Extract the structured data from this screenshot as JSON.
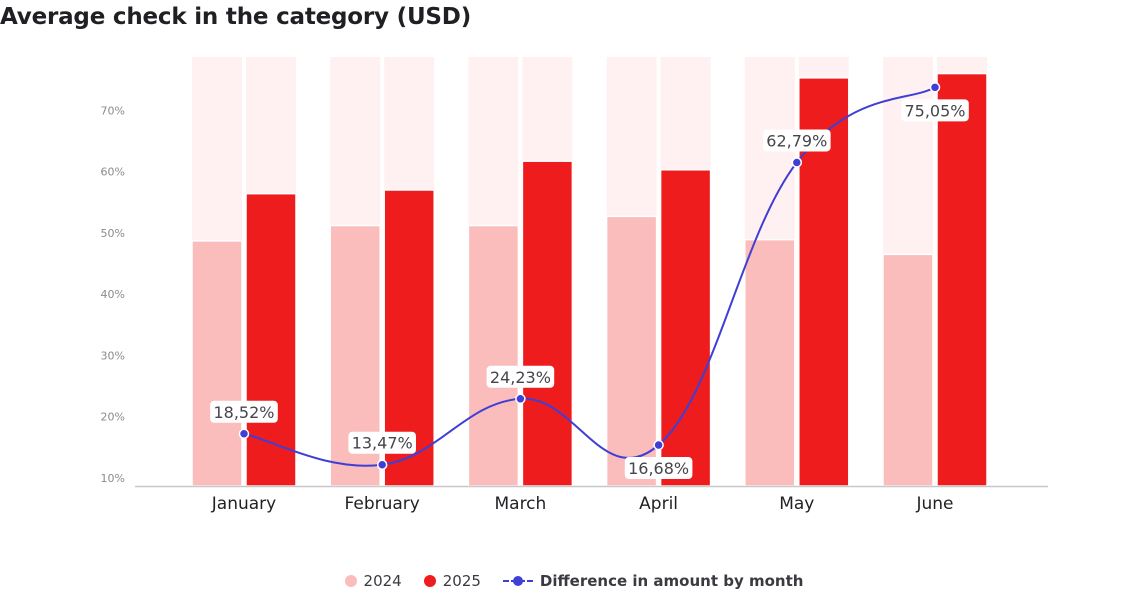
{
  "chart_data": {
    "type": "bar",
    "title": "Average check in the category (USD)",
    "categories": [
      "January",
      "February",
      "March",
      "April",
      "May",
      "June"
    ],
    "yticks": [
      "10%",
      "20%",
      "30%",
      "40%",
      "50%",
      "60%",
      "70%"
    ],
    "ylim": [
      10,
      80
    ],
    "series": [
      {
        "name": "2024",
        "type": "bar",
        "color": "#fbbcbc",
        "values": [
          50,
          52.5,
          52.5,
          54,
          50.2,
          47.8
        ]
      },
      {
        "name": "2025",
        "type": "bar",
        "color": "#ee1c1c",
        "values": [
          57.7,
          58.3,
          63,
          61.6,
          76.6,
          77.3
        ]
      },
      {
        "name": "Difference in amount by month",
        "type": "line",
        "color": "#3f3fd6",
        "values": [
          18.52,
          13.47,
          24.23,
          16.68,
          62.79,
          75.05
        ],
        "labels": [
          "18,52%",
          "13,47%",
          "24,23%",
          "16,68%",
          "62,79%",
          "75,05%"
        ]
      }
    ],
    "background_column_color": "#fff1f1",
    "legend_position": "bottom",
    "grid": false
  }
}
